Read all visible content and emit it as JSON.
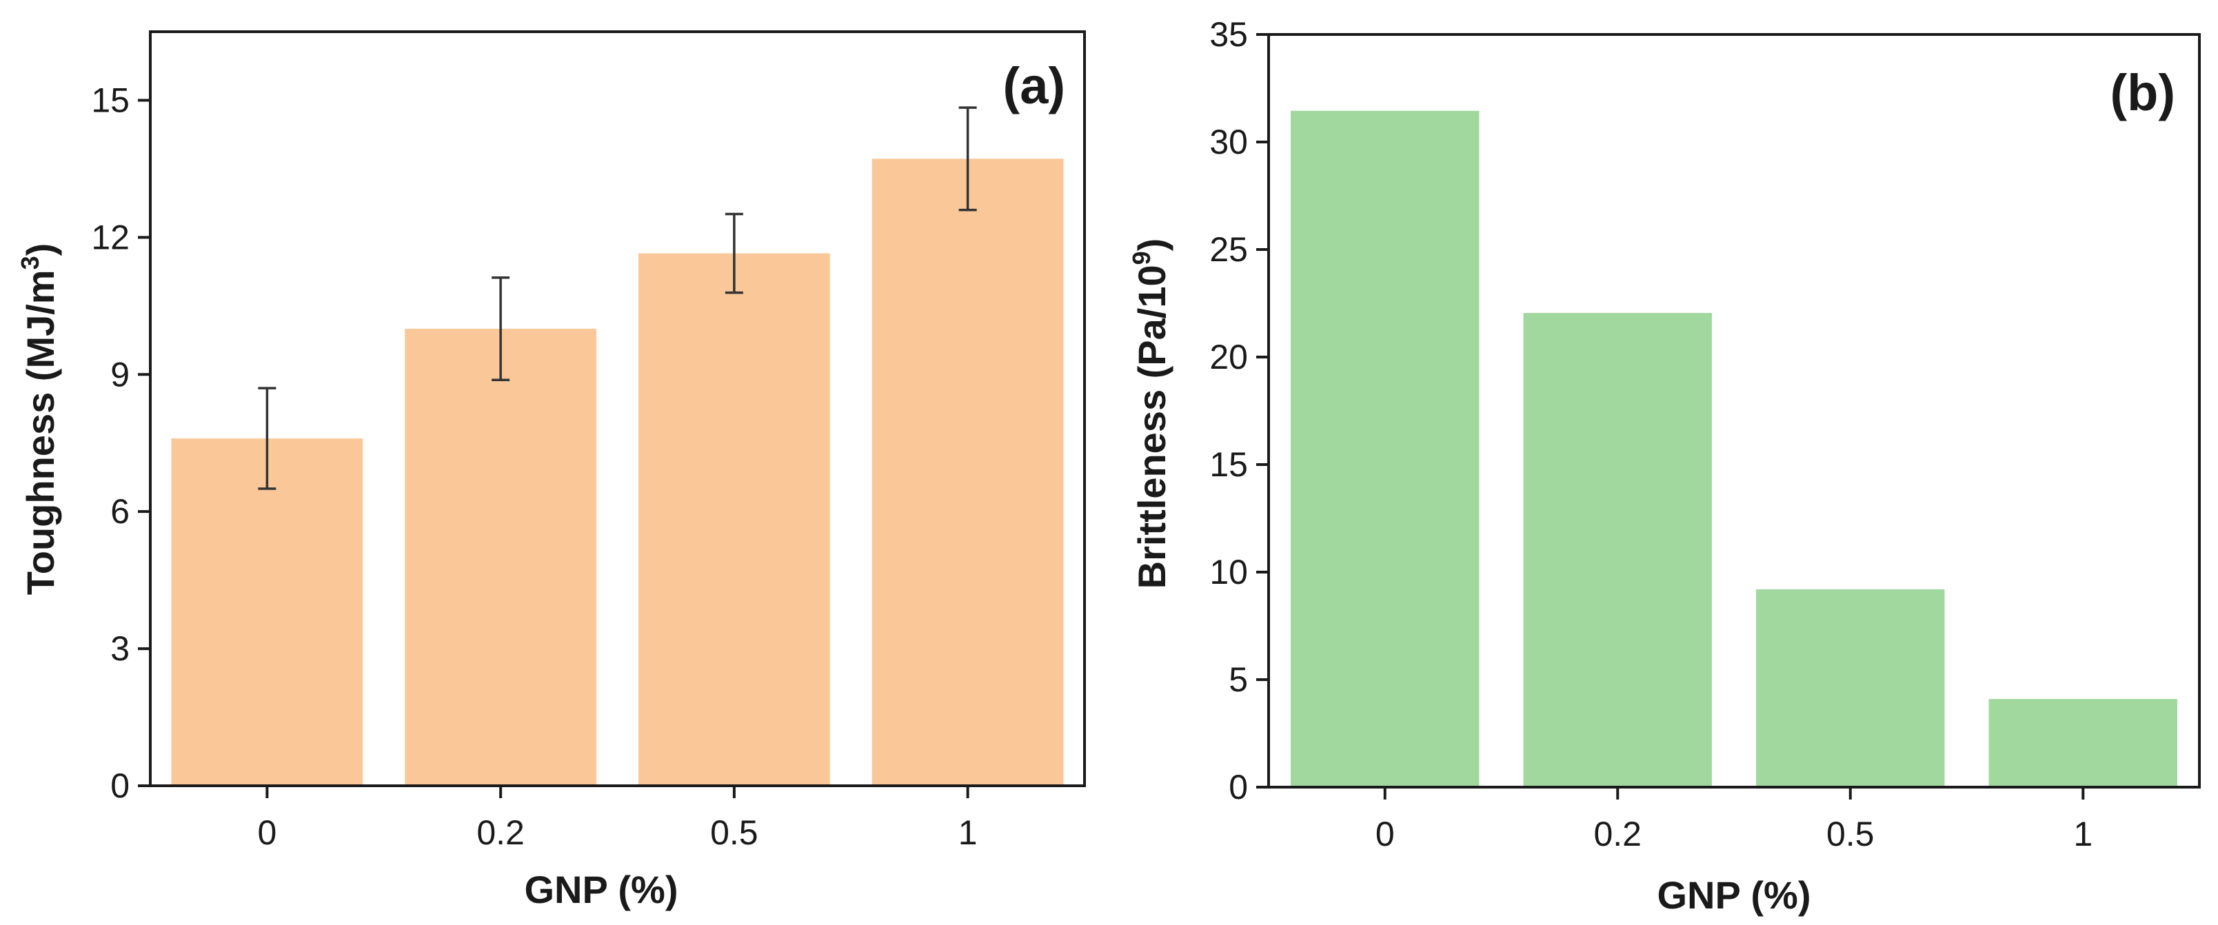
{
  "chart_data": [
    {
      "type": "bar",
      "panel_label": "(a)",
      "categories": [
        "0",
        "0.2",
        "0.5",
        "1"
      ],
      "values": [
        7.6,
        10.0,
        11.65,
        13.72
      ],
      "errors": [
        1.1,
        1.12,
        0.86,
        1.12
      ],
      "xlabel": "GNP (%)",
      "ylabel_main": "Toughness (MJ/m",
      "ylabel_sup": "3",
      "ylabel_end": ")",
      "ylim": [
        0,
        16.5
      ],
      "yticks": [
        0,
        3,
        6,
        9,
        12,
        15
      ],
      "bar_color": "#fac898",
      "grid": false
    },
    {
      "type": "bar",
      "panel_label": "(b)",
      "categories": [
        "0",
        "0.2",
        "0.5",
        "1"
      ],
      "values": [
        31.45,
        22.05,
        9.2,
        4.1
      ],
      "xlabel": "GNP (%)",
      "ylabel_main": "Brittleness (Pa/10",
      "ylabel_sup": "9",
      "ylabel_end": ")",
      "ylim": [
        0,
        35
      ],
      "yticks": [
        0,
        5,
        10,
        15,
        20,
        25,
        30,
        35
      ],
      "bar_color": "#a0d89e",
      "grid": false
    }
  ]
}
